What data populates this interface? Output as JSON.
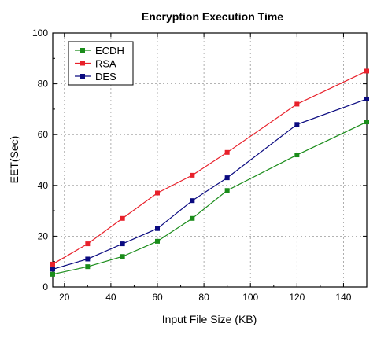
{
  "chart_data": {
    "type": "line",
    "title": "Encryption Execution Time",
    "xlabel": "Input File Size (KB)",
    "ylabel": "EET(Sec)",
    "xlim": [
      15,
      150
    ],
    "ylim": [
      0,
      100
    ],
    "x_ticks": [
      20,
      40,
      60,
      80,
      100,
      120,
      140
    ],
    "y_ticks": [
      0,
      20,
      40,
      60,
      80,
      100
    ],
    "grid": true,
    "legend_position": "top-left",
    "x": [
      15,
      30,
      45,
      60,
      75,
      90,
      120,
      150
    ],
    "series": [
      {
        "name": "ECDH",
        "color": "#1a8c1a",
        "values": [
          5,
          8,
          12,
          18,
          27,
          38,
          52,
          65
        ]
      },
      {
        "name": "RSA",
        "color": "#e8202a",
        "values": [
          9,
          17,
          27,
          37,
          44,
          53,
          72,
          85
        ]
      },
      {
        "name": "DES",
        "color": "#0a0a80",
        "values": [
          7,
          11,
          17,
          23,
          34,
          43,
          64,
          74
        ]
      }
    ]
  }
}
